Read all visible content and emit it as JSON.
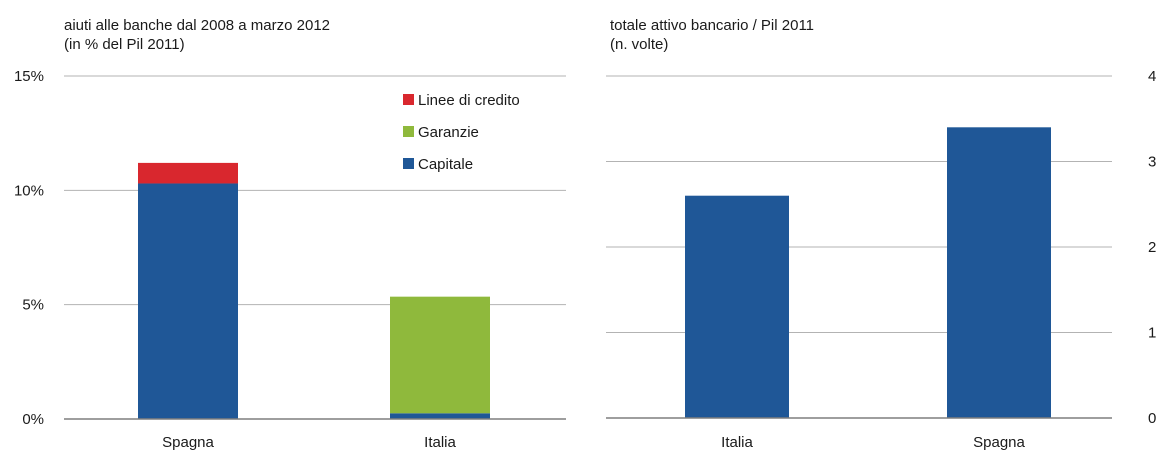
{
  "colors": {
    "capitale": "#1f5797",
    "garanzie": "#8fb93c",
    "linee": "#d9272e",
    "grid": "#b3b3b3",
    "axis": "#7f7f7f"
  },
  "chart_data": [
    {
      "type": "bar",
      "stacked": true,
      "title": "aiuti alle banche dal 2008 a marzo 2012",
      "subtitle": "(in % del Pil 2011)",
      "categories": [
        "Spagna",
        "Italia"
      ],
      "series": [
        {
          "name": "Capitale",
          "values": [
            10.3,
            0.25
          ],
          "color": "#1f5797"
        },
        {
          "name": "Garanzie",
          "values": [
            0,
            5.1
          ],
          "color": "#8fb93c"
        },
        {
          "name": "Linee di credito",
          "values": [
            0.9,
            0
          ],
          "color": "#d9272e"
        }
      ],
      "legend": {
        "placement": "top-right",
        "order": [
          "Linee di credito",
          "Garanzie",
          "Capitale"
        ]
      },
      "ylim": [
        0,
        15
      ],
      "yticks": [
        0,
        5,
        10,
        15
      ],
      "ytick_labels": [
        "0%",
        "5%",
        "10%",
        "15%"
      ],
      "y_axis_side": "left",
      "grid": true
    },
    {
      "type": "bar",
      "title": "totale attivo bancario / Pil 2011",
      "subtitle": "(n. volte)",
      "categories": [
        "Italia",
        "Spagna"
      ],
      "values": [
        2.6,
        3.4
      ],
      "color": "#1f5797",
      "ylim": [
        0,
        4
      ],
      "yticks": [
        0,
        1,
        2,
        3,
        4
      ],
      "ytick_labels": [
        "0",
        "1",
        "2",
        "3",
        "4"
      ],
      "y_axis_side": "right",
      "grid": true
    }
  ]
}
